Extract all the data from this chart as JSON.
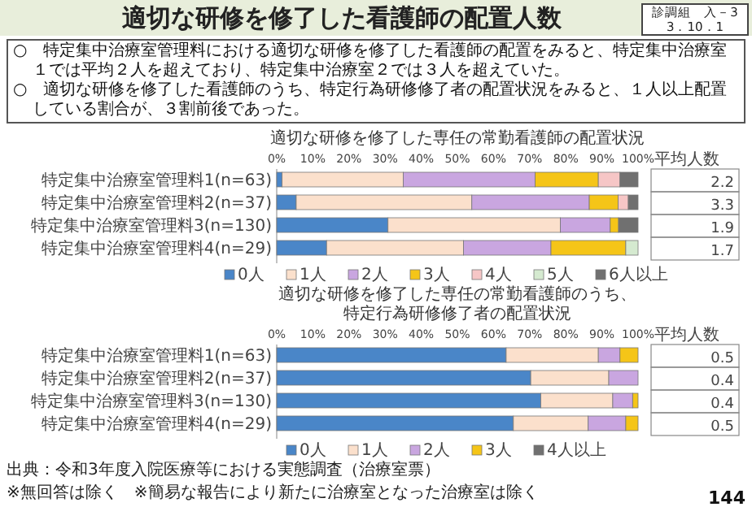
{
  "chart_data": [
    {
      "type": "other",
      "title": "適切な研修を修了した看護師の配置人数",
      "annotations": [
        "診調組　入－3",
        "3．10．1",
        "○　特定集中治療室管理料における適切な研修を修了した看護師の配置をみると、特定集中治療室１では平均２人を超えており、特定集中治療室２では３人を超えていた。",
        "○　適切な研修を修了した看護師のうち、特定行為研修修了者の配置状況をみると、１人以上配置している割合が、３割前後であった。",
        "出典：令和3年度入院医療等における実態調査（治療室票）",
        "※無回答は除く　※簡易な報告により新たに治療室となった治療室は除く",
        "144"
      ]
    },
    {
      "type": "bar",
      "orientation": "horizontal",
      "stacked": true,
      "legend": "bottom",
      "title": "適切な研修を修了した専任の常勤看護師の配置状況",
      "categories": [
        "特定集中治療室管理料1(n=63)",
        "特定集中治療室管理料2(n=37)",
        "特定集中治療室管理料3(n=130)",
        "特定集中治療室管理料4(n=29)"
      ],
      "xlim": [
        0,
        100
      ],
      "xticks": [
        {
          "value": 0,
          "label": "0%"
        },
        {
          "value": 10,
          "label": "10%"
        },
        {
          "value": 20,
          "label": "20%"
        },
        {
          "value": 30,
          "label": "30%"
        },
        {
          "value": 40,
          "label": "40%"
        },
        {
          "value": 50,
          "label": "50%"
        },
        {
          "value": 60,
          "label": "60%"
        },
        {
          "value": 70,
          "label": "70%"
        },
        {
          "value": 80,
          "label": "80%"
        },
        {
          "value": 90,
          "label": "90%"
        },
        {
          "value": 100,
          "label": "100%"
        }
      ],
      "series": [
        {
          "name": "0人",
          "color": "#4a86c8",
          "values": [
            1.5,
            5.4,
            30.8,
            13.8
          ]
        },
        {
          "name": "1人",
          "color": "#fbe0cc",
          "values": [
            33.5,
            48.6,
            47.7,
            37.9
          ]
        },
        {
          "name": "2人",
          "color": "#c9a6e0",
          "values": [
            36.5,
            32.5,
            13.8,
            24.2
          ]
        },
        {
          "name": "3人",
          "color": "#f5c518",
          "values": [
            17.5,
            8,
            2.3,
            20.7
          ]
        },
        {
          "name": "4人",
          "color": "#f6c6c6",
          "values": [
            6,
            2.8,
            0,
            0
          ]
        },
        {
          "name": "5人",
          "color": "#d5ead0",
          "values": [
            0,
            0,
            0,
            3.4
          ]
        },
        {
          "name": "6人以上",
          "color": "#707070",
          "values": [
            5,
            2.7,
            5.4,
            0
          ]
        }
      ],
      "annotations": [
        "平均人数",
        "2.2",
        "3.3",
        "1.9",
        "1.7"
      ]
    },
    {
      "type": "bar",
      "orientation": "horizontal",
      "stacked": true,
      "legend": "bottom",
      "title": "適切な研修を修了した専任の常勤看護師のうち、",
      "subtitle": "特定行為研修修了者の配置状況",
      "categories": [
        "特定集中治療室管理料1(n=63)",
        "特定集中治療室管理料2(n=37)",
        "特定集中治療室管理料3(n=130)",
        "特定集中治療室管理料4(n=29)"
      ],
      "xlim": [
        0,
        100
      ],
      "xticks": [
        {
          "value": 0,
          "label": "0%"
        },
        {
          "value": 10,
          "label": "10%"
        },
        {
          "value": 20,
          "label": "20%"
        },
        {
          "value": 30,
          "label": "30%"
        },
        {
          "value": 40,
          "label": "40%"
        },
        {
          "value": 50,
          "label": "50%"
        },
        {
          "value": 60,
          "label": "60%"
        },
        {
          "value": 70,
          "label": "70%"
        },
        {
          "value": 80,
          "label": "80%"
        },
        {
          "value": 90,
          "label": "90%"
        },
        {
          "value": 100,
          "label": "100%"
        }
      ],
      "series": [
        {
          "name": "0人",
          "color": "#4a86c8",
          "values": [
            63.5,
            70.3,
            73.1,
            65.5
          ]
        },
        {
          "name": "1人",
          "color": "#fbe0cc",
          "values": [
            25.5,
            21.6,
            19.9,
            20.7
          ]
        },
        {
          "name": "2人",
          "color": "#c9a6e0",
          "values": [
            6,
            8.1,
            5.5,
            10.4
          ]
        },
        {
          "name": "3人",
          "color": "#f5c518",
          "values": [
            5,
            0,
            1.5,
            3.4
          ]
        },
        {
          "name": "4人以上",
          "color": "#707070",
          "values": [
            0,
            0,
            0,
            0
          ]
        }
      ],
      "annotations": [
        "平均人数",
        "0.5",
        "0.4",
        "0.4",
        "0.5"
      ]
    }
  ]
}
